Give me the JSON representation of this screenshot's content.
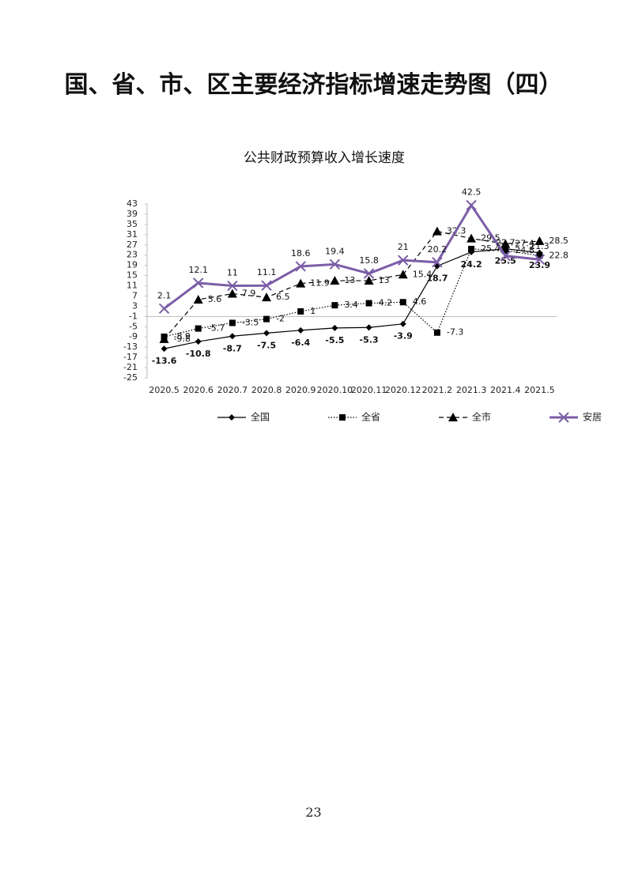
{
  "header": {
    "title": "国、省、市、区主要经济指标增速走势图（四）"
  },
  "page_number": "23",
  "chart_data": {
    "type": "line",
    "title": "公共财政预算收入增长速度",
    "categories": [
      "2020.5",
      "2020.6",
      "2020.7",
      "2020.8",
      "2020.9",
      "2020.10",
      "2020.11",
      "2020.12",
      "2021.2",
      "2021.3",
      "2021.4",
      "2021.5"
    ],
    "ylim": [
      -25,
      43
    ],
    "yticks": [
      43,
      39,
      35,
      31,
      27,
      23,
      19,
      15,
      11,
      7,
      3,
      -1,
      -5,
      -9,
      -13,
      -17,
      -21,
      -25
    ],
    "series": [
      {
        "name": "全国",
        "color": "#000000",
        "marker": "diamond",
        "dash": "solid",
        "values": [
          -13.6,
          -10.8,
          -8.7,
          -7.5,
          -6.4,
          -5.5,
          -5.3,
          -3.9,
          18.7,
          24.2,
          25.5,
          23.9
        ]
      },
      {
        "name": "全省",
        "color": "#000000",
        "marker": "square",
        "dash": "dotted",
        "values": [
          -8.9,
          -5.7,
          -3.5,
          -2,
          1,
          3.4,
          4.2,
          4.6,
          -7.3,
          25.4,
          24.8,
          22.8
        ]
      },
      {
        "name": "全市",
        "color": "#000000",
        "marker": "triangle",
        "dash": "dashed",
        "values": [
          -9.8,
          5.6,
          7.9,
          6.5,
          11.9,
          13,
          13,
          15.4,
          32.3,
          29.5,
          27.4,
          28.5
        ]
      },
      {
        "name": "安居",
        "color": "#7b5ea7",
        "marker": "x",
        "dash": "solid",
        "values": [
          2.1,
          12.1,
          11,
          11.1,
          18.6,
          19.4,
          15.8,
          21,
          20.2,
          42.5,
          22.7,
          21.3
        ]
      }
    ]
  }
}
